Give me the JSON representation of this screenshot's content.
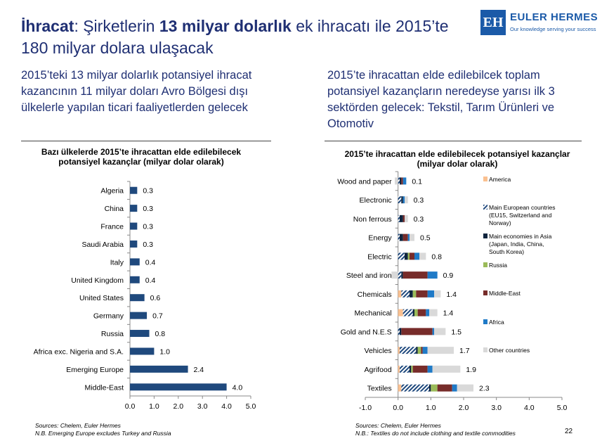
{
  "header": {
    "title_p1": "İhracat",
    "title_p2": ": Şirketlerin ",
    "title_p3": "13 milyar dolarlık",
    "title_p4": " ek ihracatı ile 2015’te 180 milyar dolara ulaşacak",
    "logo_mark": "EH",
    "logo_name": "EULER HERMES",
    "logo_tagline": "Our knowledge serving your success"
  },
  "left": {
    "subtitle": "2015’teki 13 milyar dolarlık potansiyel ihracat kazancının 11 milyar doları Avro Bölgesi dışı ülkelerle yapılan ticari faaliyetlerden gelecek",
    "source": "Sources: Chelem, Euler Hermes",
    "note": "N.B. Emerging Europe excludes Turkey and Russia"
  },
  "right": {
    "subtitle": "2015’te ihracattan elde edilebilcek toplam potansiyel kazançların neredeyse yarısı ilk 3 sektörden gelecek: Tekstil, Tarım Ürünleri ve Otomotiv",
    "source": "Sources: Chelem, Euler Hermes",
    "note": "N.B.: Textiles do not include clothing and textile commodities"
  },
  "page_number": "22",
  "colors": {
    "bar": "#1f497d",
    "america": "#fac090",
    "main_european": "#1f497d",
    "asia": "#0f243e",
    "russia": "#9bbb59",
    "middle_east": "#772c2a",
    "africa": "#1f7ac7",
    "other": "#d9d9d9"
  },
  "chart_data": [
    {
      "type": "bar",
      "orientation": "horizontal",
      "title": "Bazı ülkelerde 2015’te ihracattan elde edilebilecek potansiyel kazançlar (milyar dolar olarak)",
      "categories": [
        "Algeria",
        "China",
        "France",
        "Saudi Arabia",
        "Italy",
        "United Kingdom",
        "United States",
        "Germany",
        "Russia",
        "Africa exc. Nigeria and S.A.",
        "Emerging Europe",
        "Middle-East"
      ],
      "values": [
        0.3,
        0.3,
        0.3,
        0.3,
        0.4,
        0.4,
        0.6,
        0.7,
        0.8,
        1.0,
        2.4,
        4.0
      ],
      "value_labels": [
        "0.3",
        "0.3",
        "0.3",
        "0.3",
        "0.4",
        "0.4",
        "0.6",
        "0.7",
        "0.8",
        "1.0",
        "2.4",
        "4.0"
      ],
      "xlim": [
        0,
        5
      ],
      "xticks": [
        "0.0",
        "1.0",
        "2.0",
        "3.0",
        "4.0",
        "5.0"
      ]
    },
    {
      "type": "bar",
      "orientation": "horizontal",
      "stacked": true,
      "title": "2015’te ihracattan elde edilebilecek potansiyel kazançlar (milyar dolar olarak)",
      "categories": [
        "Wood and paper",
        "Electronic",
        "Non ferrous",
        "Energy",
        "Electric",
        "Steel and iron",
        "Chemicals",
        "Mechanical",
        "Gold and N.E.S",
        "Vehicles",
        "Agrifood",
        "Textiles"
      ],
      "totals": [
        "0.1",
        "0.3",
        "0.3",
        "0.5",
        "0.8",
        "0.9",
        "1.4",
        "1.4",
        "1.5",
        "1.7",
        "1.9",
        "2.3"
      ],
      "series": [
        {
          "key": "america",
          "name": "America",
          "values": [
            0,
            0,
            0,
            0,
            0,
            0,
            0.1,
            0.15,
            0,
            0.05,
            0.05,
            0.1
          ]
        },
        {
          "key": "main_european",
          "name": "Main European countries (EU15, Switzerland and Norway)",
          "values": [
            0.05,
            0.1,
            0.05,
            0.05,
            0.2,
            0.1,
            0.25,
            0.3,
            0.05,
            0.5,
            0.3,
            0.85
          ]
        },
        {
          "key": "asia",
          "name": "Main economies in Asia (Japan, India, China, South Korea)",
          "values": [
            0.05,
            0.05,
            0.1,
            0.1,
            0.1,
            0.05,
            0.1,
            0.05,
            0.05,
            0.05,
            0.05,
            0.05
          ]
        },
        {
          "key": "russia",
          "name": "Russia",
          "values": [
            0,
            0,
            0,
            0,
            0.05,
            0,
            0.1,
            0.1,
            0,
            0.1,
            0.05,
            0.2
          ]
        },
        {
          "key": "middle_east",
          "name": "Middle-East",
          "values": [
            0.05,
            0,
            0.05,
            0.15,
            0.15,
            0.75,
            0.35,
            0.25,
            0.95,
            0.05,
            0.45,
            0.45
          ]
        },
        {
          "key": "africa",
          "name": "Africa",
          "values": [
            0.1,
            0.05,
            0,
            0.05,
            0.15,
            0.3,
            0.2,
            0.1,
            0.05,
            0.15,
            0.15,
            0.15
          ]
        },
        {
          "key": "other",
          "name": "Other countries",
          "values": [
            -0.1,
            0.1,
            0.1,
            0.15,
            0.2,
            -0.2,
            0.2,
            0.25,
            0.35,
            0.8,
            0.85,
            0.5
          ]
        }
      ],
      "xlim": [
        -1,
        5
      ],
      "xticks": [
        "-1.0",
        "0.0",
        "1.0",
        "2.0",
        "3.0",
        "4.0",
        "5.0"
      ],
      "legend_position": "right"
    }
  ]
}
